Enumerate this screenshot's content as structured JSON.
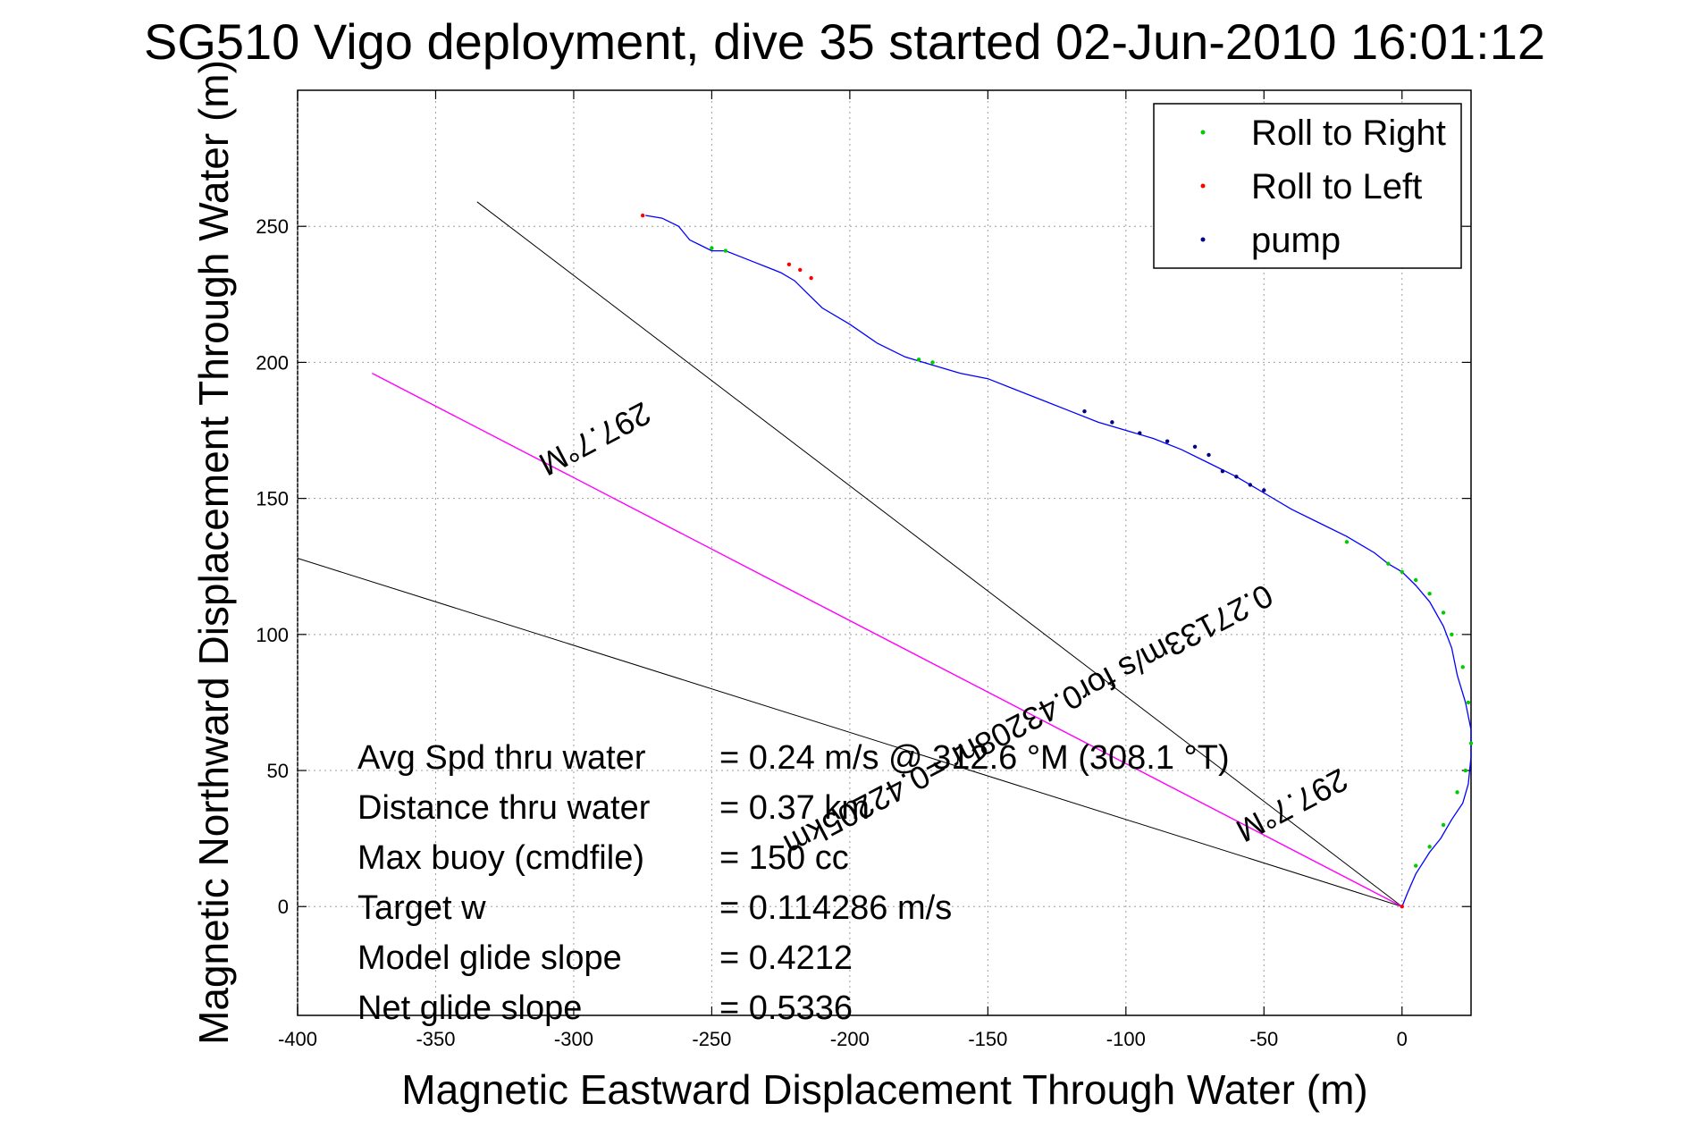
{
  "chart_data": {
    "type": "line",
    "title": "SG510 Vigo deployment, dive 35 started 02-Jun-2010 16:01:12",
    "xlabel": "Magnetic Eastward Displacement Through Water (m)",
    "ylabel": "Magnetic Northward Displacement Through Water (m)",
    "xlim": [
      -400,
      25
    ],
    "ylim": [
      -40,
      300
    ],
    "xticks": [
      -400,
      -350,
      -300,
      -250,
      -200,
      -150,
      -100,
      -50,
      0
    ],
    "yticks": [
      0,
      50,
      100,
      150,
      200,
      250
    ],
    "grid": true,
    "legend_position": "top-right",
    "legend": [
      {
        "label": "Roll to Right",
        "color": "#00cc00"
      },
      {
        "label": "Roll to Left",
        "color": "#ff0000"
      },
      {
        "label": "pump",
        "color": "#000080"
      }
    ],
    "track": {
      "color": "#0000ff",
      "x": [
        -274,
        -268,
        -262,
        -258,
        -254,
        -250,
        -245,
        -240,
        -235,
        -230,
        -225,
        -220,
        -215,
        -210,
        -200,
        -190,
        -180,
        -170,
        -160,
        -150,
        -140,
        -130,
        -120,
        -110,
        -100,
        -90,
        -80,
        -70,
        -60,
        -50,
        -40,
        -30,
        -20,
        -10,
        -5,
        0,
        5,
        10,
        15,
        18,
        20,
        23,
        25,
        25,
        24,
        22,
        18,
        14,
        10,
        5,
        2,
        0
      ],
      "y": [
        254,
        253,
        250,
        245,
        243,
        241,
        241,
        239,
        237,
        235,
        233,
        230,
        225,
        220,
        214,
        207,
        202,
        199,
        196,
        194,
        190,
        186,
        182,
        178,
        175,
        172,
        168,
        163,
        158,
        152,
        146,
        141,
        136,
        130,
        126,
        123,
        118,
        112,
        103,
        95,
        85,
        75,
        65,
        55,
        45,
        38,
        32,
        25,
        20,
        12,
        5,
        0
      ]
    },
    "markers": {
      "roll_right": {
        "x": [
          -250,
          -245,
          -175,
          -170,
          -20,
          -5,
          0,
          5,
          10,
          15,
          18,
          22,
          24,
          25,
          23,
          20,
          15,
          10,
          5
        ],
        "y": [
          242,
          241,
          201,
          200,
          134,
          126,
          123,
          120,
          115,
          108,
          100,
          88,
          75,
          60,
          50,
          42,
          30,
          22,
          15
        ]
      },
      "roll_left": {
        "x": [
          -275,
          -222,
          -218,
          -214,
          0
        ],
        "y": [
          254,
          236,
          234,
          231,
          0
        ]
      },
      "pump": {
        "x": [
          -115,
          -105,
          -95,
          -85,
          -75,
          -70,
          -65,
          -60,
          -55,
          -50
        ],
        "y": [
          182,
          178,
          174,
          171,
          169,
          166,
          160,
          158,
          155,
          153
        ]
      }
    },
    "reference_lines": [
      {
        "color": "#000000",
        "x": [
          0,
          -335
        ],
        "y": [
          0,
          259
        ]
      },
      {
        "color": "#000000",
        "x": [
          0,
          -400
        ],
        "y": [
          0,
          128
        ]
      },
      {
        "color": "#ff00ff",
        "x": [
          0,
          -373
        ],
        "y": [
          0,
          196
        ]
      }
    ],
    "annotations": {
      "heading_label": "297.7°M",
      "distance_label": "0.27133m/s for0.43208hr =0.42205km",
      "heading_label_2": "297.7°M"
    },
    "stats": [
      {
        "label": "Avg Spd thru water",
        "value": "=  0.24 m/s @ 312.6 °M (308.1 °T)"
      },
      {
        "label": "Distance thru water",
        "value": "=  0.37 km"
      },
      {
        "label": "Max buoy (cmdfile)",
        "value": "= 150 cc"
      },
      {
        "label": "Target w",
        "value": "= 0.114286 m/s"
      },
      {
        "label": "Model glide slope",
        "value": "= 0.4212"
      },
      {
        "label": "Net glide slope",
        "value": "= 0.5336"
      }
    ]
  }
}
